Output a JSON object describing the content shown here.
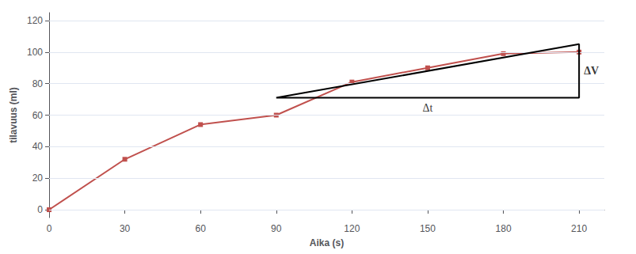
{
  "chart_data": {
    "type": "line",
    "x": [
      0,
      30,
      60,
      90,
      120,
      150,
      180,
      210
    ],
    "values": [
      0,
      32,
      54,
      60,
      81,
      90,
      99,
      100
    ],
    "color": "#C0504D",
    "marker": "square",
    "xlabel": "Aika (s)",
    "ylabel": "tilavuus (ml)",
    "xlim": [
      0,
      220
    ],
    "ylim": [
      -5,
      125
    ],
    "xticks": [
      0,
      30,
      60,
      90,
      120,
      150,
      180,
      210
    ],
    "yticks": [
      0,
      20,
      40,
      60,
      80,
      100,
      120
    ],
    "grid": true,
    "triangle": {
      "x": [
        90,
        210
      ],
      "y": [
        71,
        105
      ],
      "base_label": "Δt",
      "side_label": "ΔV"
    }
  }
}
